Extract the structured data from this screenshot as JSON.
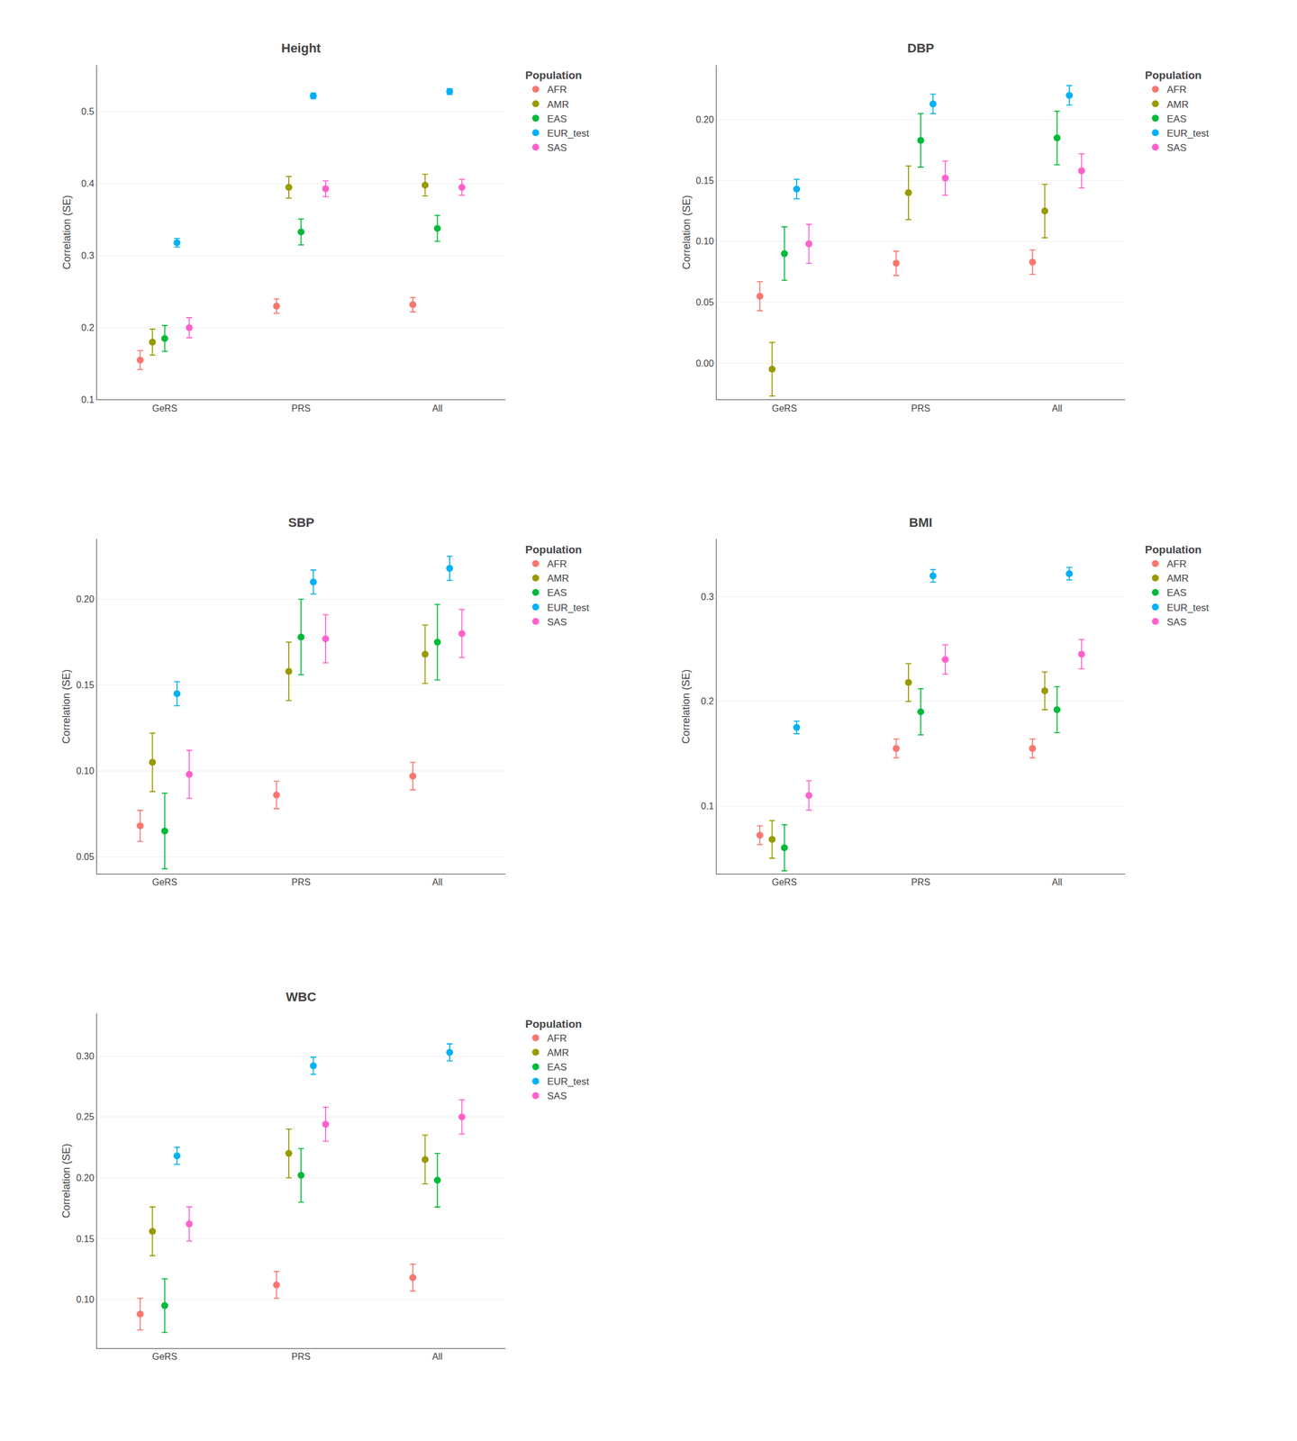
{
  "chart_data": [
    {
      "type": "scatter",
      "title": "Height",
      "y_label": "Correlation (SE)",
      "legend_title": "Population",
      "legend": "right",
      "grid": true,
      "categories": [
        "GeRS",
        "PRS",
        "All"
      ],
      "series": [
        {
          "name": "AFR",
          "color": "#F8766D",
          "marker": "circle",
          "values": [
            0.155,
            0.23,
            0.232
          ],
          "errors": [
            0.013,
            0.01,
            0.01
          ]
        },
        {
          "name": "AMR",
          "color": "#999900",
          "marker": "circle",
          "values": [
            0.18,
            0.395,
            0.398
          ],
          "errors": [
            0.018,
            0.015,
            0.015
          ]
        },
        {
          "name": "EAS",
          "color": "#00BA38",
          "marker": "circle",
          "values": [
            0.185,
            0.333,
            0.338
          ],
          "errors": [
            0.018,
            0.018,
            0.018
          ]
        },
        {
          "name": "EUR_test",
          "color": "#00B0F6",
          "marker": "circle",
          "values": [
            0.318,
            0.522,
            0.528
          ],
          "errors": [
            0.006,
            0.004,
            0.004
          ]
        },
        {
          "name": "SAS",
          "color": "#FF61CC",
          "marker": "circle",
          "values": [
            0.2,
            0.393,
            0.395
          ],
          "errors": [
            0.014,
            0.011,
            0.011
          ]
        }
      ],
      "ylim": [
        0.1,
        0.565
      ],
      "yticks": [
        0.1,
        0.2,
        0.3,
        0.4,
        0.5
      ]
    },
    {
      "type": "scatter",
      "title": "DBP",
      "y_label": "Correlation (SE)",
      "legend_title": "Population",
      "legend": "right",
      "grid": true,
      "categories": [
        "GeRS",
        "PRS",
        "All"
      ],
      "series": [
        {
          "name": "AFR",
          "color": "#F8766D",
          "marker": "circle",
          "values": [
            0.055,
            0.082,
            0.083
          ],
          "errors": [
            0.012,
            0.01,
            0.01
          ]
        },
        {
          "name": "AMR",
          "color": "#999900",
          "marker": "circle",
          "values": [
            -0.005,
            0.14,
            0.125
          ],
          "errors": [
            0.022,
            0.022,
            0.022
          ]
        },
        {
          "name": "EAS",
          "color": "#00BA38",
          "marker": "circle",
          "values": [
            0.09,
            0.183,
            0.185
          ],
          "errors": [
            0.022,
            0.022,
            0.022
          ]
        },
        {
          "name": "EUR_test",
          "color": "#00B0F6",
          "marker": "circle",
          "values": [
            0.143,
            0.213,
            0.22
          ],
          "errors": [
            0.008,
            0.008,
            0.008
          ]
        },
        {
          "name": "SAS",
          "color": "#FF61CC",
          "marker": "circle",
          "values": [
            0.098,
            0.152,
            0.158
          ],
          "errors": [
            0.016,
            0.014,
            0.014
          ]
        }
      ],
      "ylim": [
        -0.03,
        0.245
      ],
      "yticks": [
        {
          "value": 0.0,
          "label": "0.00"
        },
        0.05,
        {
          "value": 0.1,
          "label": "0.10"
        },
        0.15,
        {
          "value": 0.2,
          "label": "0.20"
        }
      ]
    },
    {
      "type": "scatter",
      "title": "SBP",
      "y_label": "Correlation (SE)",
      "legend_title": "Population",
      "legend": "right",
      "grid": true,
      "categories": [
        "GeRS",
        "PRS",
        "All"
      ],
      "series": [
        {
          "name": "AFR",
          "color": "#F8766D",
          "marker": "circle",
          "values": [
            0.068,
            0.086,
            0.097
          ],
          "errors": [
            0.009,
            0.008,
            0.008
          ]
        },
        {
          "name": "AMR",
          "color": "#999900",
          "marker": "circle",
          "values": [
            0.105,
            0.158,
            0.168
          ],
          "errors": [
            0.017,
            0.017,
            0.017
          ]
        },
        {
          "name": "EAS",
          "color": "#00BA38",
          "marker": "circle",
          "values": [
            0.065,
            0.178,
            0.175
          ],
          "errors": [
            0.022,
            0.022,
            0.022
          ]
        },
        {
          "name": "EUR_test",
          "color": "#00B0F6",
          "marker": "circle",
          "values": [
            0.145,
            0.21,
            0.218
          ],
          "errors": [
            0.007,
            0.007,
            0.007
          ]
        },
        {
          "name": "SAS",
          "color": "#FF61CC",
          "marker": "circle",
          "values": [
            0.098,
            0.177,
            0.18
          ],
          "errors": [
            0.014,
            0.014,
            0.014
          ]
        }
      ],
      "ylim": [
        0.04,
        0.235
      ],
      "yticks": [
        0.05,
        {
          "value": 0.1,
          "label": "0.10"
        },
        0.15,
        {
          "value": 0.2,
          "label": "0.20"
        }
      ]
    },
    {
      "type": "scatter",
      "title": "BMI",
      "y_label": "Correlation (SE)",
      "legend_title": "Population",
      "legend": "right",
      "grid": true,
      "categories": [
        "GeRS",
        "PRS",
        "All"
      ],
      "series": [
        {
          "name": "AFR",
          "color": "#F8766D",
          "marker": "circle",
          "values": [
            0.072,
            0.155,
            0.155
          ],
          "errors": [
            0.009,
            0.009,
            0.009
          ]
        },
        {
          "name": "AMR",
          "color": "#999900",
          "marker": "circle",
          "values": [
            0.068,
            0.218,
            0.21
          ],
          "errors": [
            0.018,
            0.018,
            0.018
          ]
        },
        {
          "name": "EAS",
          "color": "#00BA38",
          "marker": "circle",
          "values": [
            0.06,
            0.19,
            0.192
          ],
          "errors": [
            0.022,
            0.022,
            0.022
          ]
        },
        {
          "name": "EUR_test",
          "color": "#00B0F6",
          "marker": "circle",
          "values": [
            0.175,
            0.32,
            0.322
          ],
          "errors": [
            0.006,
            0.006,
            0.006
          ]
        },
        {
          "name": "SAS",
          "color": "#FF61CC",
          "marker": "circle",
          "values": [
            0.11,
            0.24,
            0.245
          ],
          "errors": [
            0.014,
            0.014,
            0.014
          ]
        }
      ],
      "ylim": [
        0.035,
        0.355
      ],
      "yticks": [
        0.1,
        0.2,
        0.3
      ]
    },
    {
      "type": "scatter",
      "title": "WBC",
      "y_label": "Correlation (SE)",
      "legend_title": "Population",
      "legend": "right",
      "grid": true,
      "categories": [
        "GeRS",
        "PRS",
        "All"
      ],
      "series": [
        {
          "name": "AFR",
          "color": "#F8766D",
          "marker": "circle",
          "values": [
            0.088,
            0.112,
            0.118
          ],
          "errors": [
            0.013,
            0.011,
            0.011
          ]
        },
        {
          "name": "AMR",
          "color": "#999900",
          "marker": "circle",
          "values": [
            0.156,
            0.22,
            0.215
          ],
          "errors": [
            0.02,
            0.02,
            0.02
          ]
        },
        {
          "name": "EAS",
          "color": "#00BA38",
          "marker": "circle",
          "values": [
            0.095,
            0.202,
            0.198
          ],
          "errors": [
            0.022,
            0.022,
            0.022
          ]
        },
        {
          "name": "EUR_test",
          "color": "#00B0F6",
          "marker": "circle",
          "values": [
            0.218,
            0.292,
            0.303
          ],
          "errors": [
            0.007,
            0.007,
            0.007
          ]
        },
        {
          "name": "SAS",
          "color": "#FF61CC",
          "marker": "circle",
          "values": [
            0.162,
            0.244,
            0.25
          ],
          "errors": [
            0.014,
            0.014,
            0.014
          ]
        }
      ],
      "ylim": [
        0.06,
        0.335
      ],
      "yticks": [
        {
          "value": 0.1,
          "label": "0.10"
        },
        0.15,
        {
          "value": 0.2,
          "label": "0.20"
        },
        0.25,
        {
          "value": 0.3,
          "label": "0.30"
        }
      ]
    }
  ]
}
